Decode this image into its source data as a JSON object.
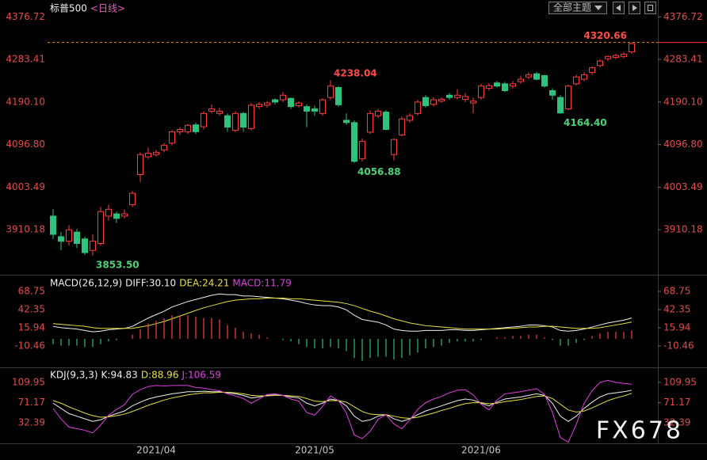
{
  "chart_data": [
    {
      "type": "candlestick",
      "title": "标普500",
      "subtitle": "<日线>",
      "categories": [
        null,
        null,
        null,
        null,
        null,
        null,
        null,
        null,
        null,
        null,
        null,
        null,
        null,
        "2021/04",
        null,
        null,
        null,
        null,
        null,
        null,
        null,
        null,
        null,
        null,
        null,
        null,
        null,
        null,
        null,
        null,
        null,
        null,
        null,
        "2021/05",
        null,
        null,
        null,
        null,
        null,
        null,
        null,
        null,
        null,
        null,
        null,
        null,
        null,
        null,
        null,
        null,
        null,
        null,
        null,
        null,
        "2021/06",
        null,
        null,
        null,
        null,
        null,
        null,
        null,
        null,
        null,
        null,
        null,
        null,
        null,
        null,
        null,
        null,
        null,
        null,
        null
      ],
      "open": [
        3940,
        3895,
        3885,
        3905,
        3890,
        3865,
        3880,
        3940,
        3945,
        3940,
        3965,
        4031,
        4070,
        4075,
        4085,
        4100,
        4125,
        4125,
        4140,
        4136,
        4170,
        4165,
        4160,
        4128,
        4165,
        4132,
        4180,
        4183,
        4195,
        4195,
        4198,
        4182,
        4180,
        4175,
        4165,
        4200,
        4222,
        4150,
        4145,
        4066,
        4124,
        4160,
        4168,
        4075,
        4118,
        4150,
        4165,
        4200,
        4185,
        4192,
        4205,
        4200,
        4196,
        4188,
        4200,
        4220,
        4232,
        4230,
        4225,
        4235,
        4245,
        4252,
        4248,
        4215,
        4200,
        4175,
        4230,
        4240,
        4255,
        4270,
        4285,
        4288,
        4290,
        4300
      ],
      "high": [
        3955,
        3905,
        3920,
        3912,
        3895,
        3900,
        3960,
        3965,
        3950,
        3955,
        3995,
        4080,
        4090,
        4085,
        4100,
        4128,
        4135,
        4142,
        4145,
        4170,
        4185,
        4178,
        4165,
        4170,
        4168,
        4188,
        4190,
        4192,
        4198,
        4212,
        4200,
        4192,
        4185,
        4182,
        4198,
        4238.04,
        4225,
        4165,
        4150,
        4110,
        4172,
        4175,
        4172,
        4110,
        4158,
        4165,
        4195,
        4205,
        4200,
        4200,
        4210,
        4218,
        4210,
        4200,
        4230,
        4232,
        4236,
        4234,
        4236,
        4248,
        4255,
        4256,
        4250,
        4220,
        4205,
        4228,
        4250,
        4255,
        4268,
        4284,
        4292,
        4296,
        4300,
        4320.66
      ],
      "low": [
        3890,
        3865,
        3875,
        3870,
        3855,
        3853.5,
        3875,
        3930,
        3925,
        3935,
        3960,
        4015,
        4065,
        4070,
        4080,
        4095,
        4118,
        4120,
        4120,
        4130,
        4165,
        4160,
        4125,
        4124,
        4125,
        4128,
        4175,
        4178,
        4185,
        4190,
        4175,
        4178,
        4135,
        4160,
        4160,
        4195,
        4180,
        4140,
        4056.88,
        4060,
        4120,
        4155,
        4128,
        4062,
        4115,
        4145,
        4160,
        4178,
        4180,
        4188,
        4195,
        4196,
        4190,
        4165,
        4195,
        4215,
        4222,
        4212,
        4220,
        4230,
        4240,
        4238,
        4222,
        4195,
        4164.4,
        4172,
        4226,
        4236,
        4250,
        4266,
        4280,
        4284,
        4286,
        4296
      ],
      "close": [
        3900,
        3885,
        3910,
        3880,
        3860,
        3885,
        3950,
        3955,
        3935,
        3945,
        3990,
        4075,
        4078,
        4080,
        4095,
        4125,
        4130,
        4139,
        4125,
        4165,
        4175,
        4170,
        4135,
        4165,
        4135,
        4183,
        4185,
        4188,
        4190,
        4205,
        4180,
        4188,
        4170,
        4170,
        4195,
        4225,
        4184,
        4145,
        4060,
        4104,
        4165,
        4170,
        4130,
        4108,
        4153,
        4160,
        4190,
        4182,
        4195,
        4196,
        4200,
        4205,
        4202,
        4192,
        4225,
        4226,
        4225,
        4215,
        4230,
        4240,
        4250,
        4240,
        4225,
        4205,
        4166,
        4225,
        4245,
        4250,
        4265,
        4280,
        4290,
        4292,
        4295,
        4318
      ],
      "up_color": "#ff3b3b",
      "down_color": "#2ec27e",
      "ylim": [
        3815,
        4405
      ],
      "yticks": [
        4376.72,
        4283.41,
        {
          "value": 4190.1,
          "label": "4190.10"
        },
        {
          "value": 4096.8,
          "label": "4096.80"
        },
        4003.49,
        3910.18
      ],
      "reference_line": 4320.66,
      "reference_color": "#d0901f",
      "extreme_labels": [
        4320.66,
        4238.04,
        4056.88,
        {
          "value": 4164.4,
          "label": "4164.40"
        },
        {
          "value": 3853.5,
          "label": "3853.50"
        }
      ],
      "grid": false
    },
    {
      "type": "combo",
      "title": "MACD(26,12,9)",
      "series": [
        {
          "name": "DIFF:30.10",
          "color": "#f0f0f0",
          "values": [
            18,
            16,
            15,
            14,
            12,
            10,
            11,
            13,
            14,
            15,
            18,
            24,
            30,
            35,
            40,
            46,
            50,
            54,
            57,
            60,
            63,
            65,
            64,
            64,
            62,
            62,
            61,
            60,
            59,
            58,
            56,
            54,
            51,
            49,
            48,
            48,
            46,
            42,
            34,
            28,
            26,
            24,
            20,
            14,
            12,
            11,
            11,
            12,
            12,
            12,
            13,
            13,
            12,
            12,
            13,
            14,
            15,
            16,
            17,
            18,
            20,
            20,
            19,
            17,
            12,
            11,
            12,
            14,
            17,
            20,
            23,
            25,
            27,
            30.1
          ]
        },
        {
          "name": "DEA:24.21",
          "color": "#e8e040",
          "values": [
            22,
            21,
            20,
            19,
            18,
            16,
            15,
            15,
            15,
            15,
            15,
            17,
            19,
            22,
            25,
            29,
            33,
            37,
            41,
            45,
            48,
            51,
            54,
            56,
            57,
            58,
            58,
            59,
            59,
            59,
            58,
            58,
            57,
            56,
            55,
            54,
            53,
            51,
            48,
            44,
            40,
            37,
            33,
            29,
            26,
            23,
            21,
            19,
            18,
            17,
            16,
            15,
            14,
            14,
            14,
            14,
            14,
            15,
            15,
            16,
            17,
            17,
            18,
            18,
            17,
            16,
            15,
            15,
            15,
            16,
            18,
            20,
            22,
            24.21
          ]
        },
        {
          "name": "MACD:11.79",
          "color": "#e040e0",
          "style": "bar",
          "up_color": "#ff4040",
          "down_color": "#30c070",
          "values": [
            -8,
            -10,
            -10,
            -10,
            -12,
            -12,
            -8,
            -4,
            -2,
            0,
            6,
            14,
            22,
            26,
            30,
            34,
            34,
            34,
            32,
            30,
            30,
            28,
            20,
            16,
            10,
            8,
            6,
            2,
            0,
            -2,
            -4,
            -8,
            -12,
            -14,
            -14,
            -12,
            -14,
            -18,
            -28,
            -32,
            -28,
            -26,
            -26,
            -30,
            -28,
            -24,
            -20,
            -14,
            -12,
            -10,
            -6,
            -4,
            -4,
            -4,
            -2,
            0,
            2,
            2,
            4,
            4,
            6,
            6,
            2,
            -2,
            -10,
            -10,
            -6,
            -2,
            4,
            8,
            10,
            10,
            10,
            11.79
          ]
        }
      ],
      "ylim": [
        -39.2,
        89.4
      ],
      "yticks": [
        68.75,
        42.35,
        15.94,
        -10.46
      ],
      "grid": false
    },
    {
      "type": "line",
      "title": "KDJ(9,3,3)",
      "series": [
        {
          "name": "K:94.83",
          "color": "#f0f0f0",
          "values": [
            70,
            60,
            50,
            45,
            40,
            35,
            38,
            45,
            50,
            55,
            65,
            72,
            78,
            82,
            85,
            88,
            90,
            92,
            92,
            93,
            92,
            92,
            90,
            88,
            85,
            80,
            82,
            85,
            86,
            85,
            82,
            80,
            70,
            65,
            70,
            78,
            75,
            65,
            45,
            35,
            38,
            45,
            48,
            40,
            35,
            40,
            48,
            55,
            60,
            65,
            70,
            75,
            78,
            76,
            70,
            65,
            72,
            78,
            80,
            82,
            85,
            88,
            85,
            70,
            45,
            35,
            45,
            60,
            72,
            82,
            88,
            90,
            92,
            94.83
          ]
        },
        {
          "name": "D:88.96",
          "color": "#e8e040",
          "values": [
            75,
            70,
            63,
            57,
            51,
            46,
            43,
            44,
            46,
            49,
            54,
            60,
            66,
            71,
            76,
            80,
            83,
            86,
            88,
            90,
            90,
            91,
            91,
            90,
            88,
            85,
            84,
            84,
            85,
            85,
            84,
            83,
            79,
            74,
            73,
            75,
            75,
            72,
            63,
            54,
            49,
            48,
            48,
            45,
            42,
            41,
            43,
            47,
            51,
            56,
            60,
            65,
            69,
            71,
            71,
            69,
            70,
            73,
            75,
            77,
            80,
            83,
            84,
            79,
            68,
            57,
            53,
            55,
            61,
            68,
            75,
            80,
            84,
            88.96
          ]
        },
        {
          "name": "J:106.59",
          "color": "#e040e0",
          "values": [
            60,
            40,
            24,
            21,
            18,
            13,
            28,
            47,
            58,
            67,
            87,
            96,
            102,
            104,
            103,
            104,
            104,
            104,
            100,
            99,
            96,
            94,
            88,
            84,
            79,
            70,
            78,
            87,
            88,
            85,
            78,
            74,
            52,
            47,
            64,
            84,
            75,
            51,
            9,
            2,
            16,
            39,
            48,
            30,
            21,
            38,
            58,
            71,
            78,
            83,
            90,
            95,
            96,
            86,
            68,
            57,
            76,
            88,
            90,
            92,
            95,
            98,
            87,
            52,
            4,
            -5,
            29,
            70,
            94,
            110,
            114,
            110,
            108,
            106.59
          ]
        }
      ],
      "ylim": [
        -7.2,
        135.8
      ],
      "yticks": [
        109.95,
        71.17,
        32.39
      ],
      "grid": false
    }
  ],
  "toolbar": {
    "theme_button": "全部主题"
  },
  "watermark": "FX678"
}
